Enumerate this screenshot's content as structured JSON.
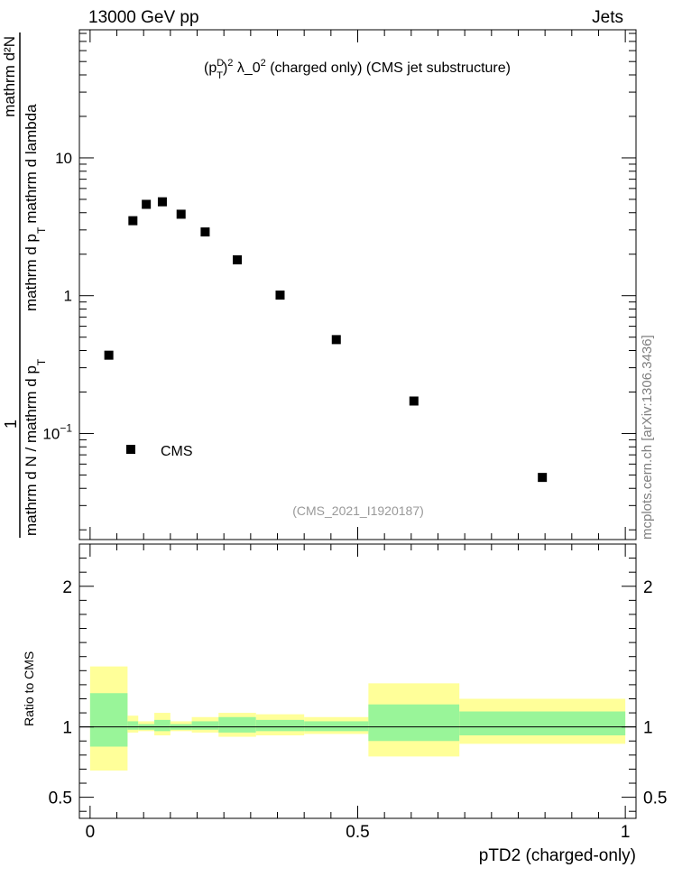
{
  "header": {
    "left": "13000 GeV pp",
    "right": "Jets"
  },
  "side_label": "mcplots.cern.ch [arXiv:1306.3436]",
  "chart_data": [
    {
      "type": "scatter",
      "title_parts": {
        "p": "(p",
        "sup_d": "D",
        "sub_t": "T",
        "close": ")",
        "sup2": "2",
        "rest": " λ_0",
        "sup2b": "2",
        "tail": " (charged only) (CMS jet substructure)"
      },
      "analysis_id": "(CMS_2021_I1920187)",
      "ylabel": {
        "numerator": "mathrm d²N",
        "denominator_a": "mathrm d N / mathrm d p",
        "denominator_b": "mathrm d p",
        "numerator_part2": "mathrm d lambda",
        "one": "1",
        "sub_t": "T"
      },
      "yscale": "log",
      "ylim": [
        0.017,
        85
      ],
      "xlim": [
        -0.02,
        1.02
      ],
      "y_ticks": [
        {
          "v": 0.1,
          "base": "10",
          "exp": "−1"
        },
        {
          "v": 1,
          "label": "1"
        },
        {
          "v": 10,
          "label": "10"
        }
      ],
      "legend": {
        "label": "CMS",
        "position": "bottom-left"
      },
      "series": [
        {
          "name": "CMS",
          "x": [
            0.035,
            0.08,
            0.105,
            0.135,
            0.17,
            0.215,
            0.275,
            0.355,
            0.46,
            0.605,
            0.845
          ],
          "y": [
            0.37,
            3.5,
            4.6,
            4.8,
            3.9,
            2.9,
            1.82,
            1.01,
            0.48,
            0.172,
            0.048
          ]
        }
      ]
    },
    {
      "type": "area",
      "ylabel": "Ratio to CMS",
      "xlabel": "pTD2 (charged-only)",
      "ylim": [
        0.35,
        2.3
      ],
      "xlim": [
        -0.02,
        1.02
      ],
      "y_ticks": [
        0.5,
        1,
        2
      ],
      "x_ticks": [
        {
          "v": 0,
          "label": "0"
        },
        {
          "v": 0.5,
          "label": "0.5"
        },
        {
          "v": 1,
          "label": "1"
        }
      ],
      "reference_line": 1,
      "bins": [
        {
          "lo": 0.0,
          "hi": 0.07,
          "inner": [
            0.86,
            1.24
          ],
          "outer": [
            0.69,
            1.43
          ]
        },
        {
          "lo": 0.07,
          "hi": 0.09,
          "inner": [
            0.98,
            1.04
          ],
          "outer": [
            0.96,
            1.08
          ]
        },
        {
          "lo": 0.09,
          "hi": 0.12,
          "inner": [
            0.98,
            1.02
          ],
          "outer": [
            0.97,
            1.04
          ]
        },
        {
          "lo": 0.12,
          "hi": 0.15,
          "inner": [
            0.97,
            1.05
          ],
          "outer": [
            0.94,
            1.1
          ]
        },
        {
          "lo": 0.15,
          "hi": 0.19,
          "inner": [
            0.98,
            1.02
          ],
          "outer": [
            0.97,
            1.04
          ]
        },
        {
          "lo": 0.19,
          "hi": 0.24,
          "inner": [
            0.98,
            1.04
          ],
          "outer": [
            0.96,
            1.07
          ]
        },
        {
          "lo": 0.24,
          "hi": 0.31,
          "inner": [
            0.96,
            1.07
          ],
          "outer": [
            0.93,
            1.1
          ]
        },
        {
          "lo": 0.31,
          "hi": 0.4,
          "inner": [
            0.97,
            1.05
          ],
          "outer": [
            0.94,
            1.09
          ]
        },
        {
          "lo": 0.4,
          "hi": 0.52,
          "inner": [
            0.97,
            1.04
          ],
          "outer": [
            0.95,
            1.07
          ]
        },
        {
          "lo": 0.52,
          "hi": 0.69,
          "inner": [
            0.9,
            1.16
          ],
          "outer": [
            0.79,
            1.31
          ]
        },
        {
          "lo": 0.69,
          "hi": 1.0,
          "inner": [
            0.94,
            1.11
          ],
          "outer": [
            0.88,
            1.2
          ]
        }
      ]
    }
  ],
  "colors": {
    "inner_band": "#99f599",
    "outer_band": "#ffff99",
    "marker": "#000000",
    "axis": "#000000",
    "analysis_id": "#999999",
    "side_label": "#808080"
  }
}
